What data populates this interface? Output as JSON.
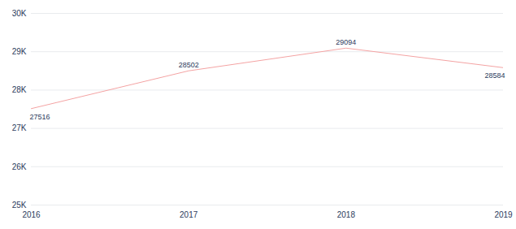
{
  "chart_data": {
    "type": "line",
    "x": [
      2016,
      2017,
      2018,
      2019
    ],
    "values": [
      27516,
      28502,
      29094,
      28584
    ],
    "color": "#f4a3a3",
    "xlim": [
      2016,
      2019
    ],
    "xticks": [
      2016,
      2017,
      2018,
      2019
    ],
    "ylim": [
      25000,
      30000
    ],
    "yticks": [
      {
        "value": 25000,
        "label": "25K"
      },
      {
        "value": 26000,
        "label": "26K"
      },
      {
        "value": 27000,
        "label": "27K"
      },
      {
        "value": 28000,
        "label": "28K"
      },
      {
        "value": 29000,
        "label": "29K"
      },
      {
        "value": 30000,
        "label": "30K"
      }
    ],
    "grid": true,
    "data_labels": true
  }
}
